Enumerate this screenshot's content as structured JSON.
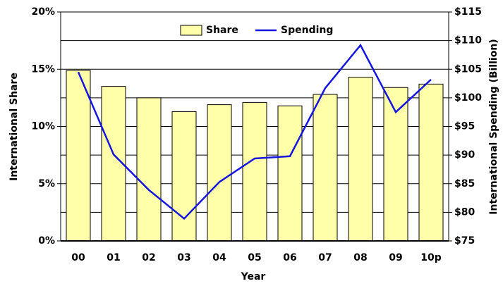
{
  "chart_data": {
    "type": "bar_line",
    "categories": [
      "00",
      "01",
      "02",
      "03",
      "04",
      "05",
      "06",
      "07",
      "08",
      "09",
      "10p"
    ],
    "series": [
      {
        "name": "Share",
        "type": "bar",
        "color": "#ffffaa",
        "values": [
          14.9,
          13.5,
          12.5,
          11.3,
          11.9,
          12.1,
          11.8,
          12.8,
          14.3,
          13.4,
          13.7
        ]
      },
      {
        "name": "Spending",
        "type": "line",
        "axis": "y2",
        "color": "#1515e0",
        "values": [
          104.5,
          90.1,
          83.9,
          78.9,
          85.3,
          89.4,
          89.8,
          101.7,
          109.2,
          97.5,
          103.2
        ]
      }
    ],
    "x_label": "Year",
    "y_label": "International Share",
    "y2_label": "International Spending (Billion)",
    "ylim": [
      0,
      20
    ],
    "yticks": [
      {
        "value": 0,
        "label": "0%"
      },
      {
        "value": 5,
        "label": "5%"
      },
      {
        "value": 10,
        "label": "10%"
      },
      {
        "value": 15,
        "label": "15%"
      },
      {
        "value": 20,
        "label": "20%"
      }
    ],
    "y2lim": [
      75,
      115
    ],
    "y2ticks": [
      {
        "value": 75,
        "label": "$75"
      },
      {
        "value": 80,
        "label": "$80"
      },
      {
        "value": 85,
        "label": "$85"
      },
      {
        "value": 90,
        "label": "$90"
      },
      {
        "value": 95,
        "label": "$95"
      },
      {
        "value": 100,
        "label": "$100"
      },
      {
        "value": 105,
        "label": "$105"
      },
      {
        "value": 110,
        "label": "$110"
      },
      {
        "value": 115,
        "label": "$115"
      }
    ],
    "grid": true,
    "legend": "top"
  }
}
